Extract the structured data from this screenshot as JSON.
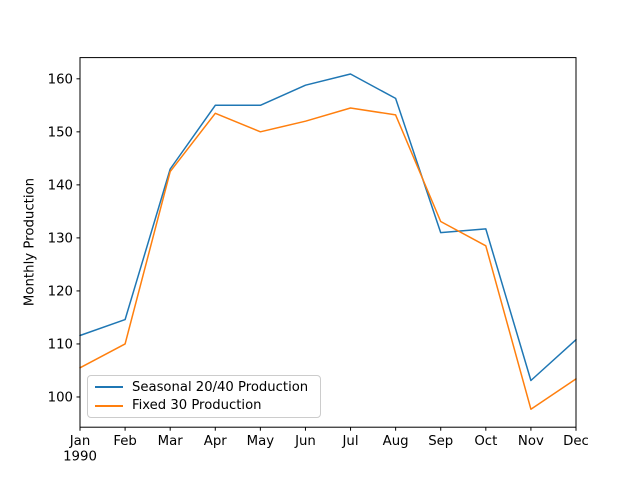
{
  "chart_data": {
    "type": "line",
    "title": "",
    "xlabel": "",
    "ylabel": "Monthly Production",
    "categories": [
      "Jan",
      "Feb",
      "Mar",
      "Apr",
      "May",
      "Jun",
      "Jul",
      "Aug",
      "Sep",
      "Oct",
      "Nov",
      "Dec"
    ],
    "x_sub_label": "1990",
    "y_ticks": [
      100,
      110,
      120,
      130,
      140,
      150,
      160
    ],
    "ylim": [
      94.3,
      164.0
    ],
    "grid": false,
    "legend_position": "lower left",
    "series": [
      {
        "name": "Seasonal 20/40 Production",
        "color": "#1f77b4",
        "values": [
          111.6,
          114.6,
          143.0,
          155.0,
          155.0,
          158.8,
          160.9,
          156.3,
          131.0,
          131.7,
          103.1,
          110.8
        ]
      },
      {
        "name": "Fixed 30 Production",
        "color": "#ff7f0e",
        "values": [
          105.5,
          110.0,
          142.5,
          153.5,
          150.0,
          152.0,
          154.5,
          153.2,
          133.1,
          128.5,
          97.7,
          103.4
        ]
      }
    ]
  }
}
